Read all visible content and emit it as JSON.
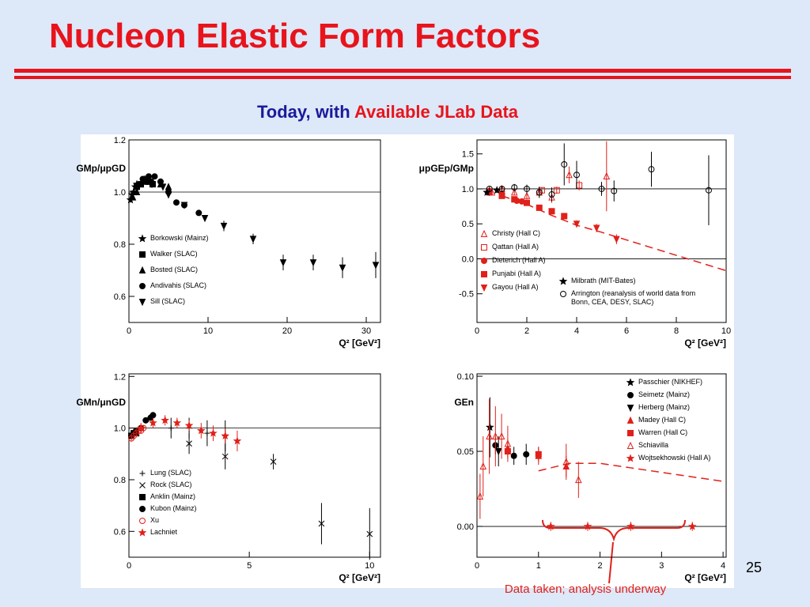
{
  "slide": {
    "title": "Nucleon Elastic Form Factors",
    "subtitle_lead": "Today, with ",
    "subtitle_emph": "Available JLab Data",
    "page_number": "25",
    "annotation": "Data taken; analysis underway"
  },
  "chart_data": [
    {
      "type": "scatter",
      "y_label": "GMp/μpGD",
      "x_label": "Q² [GeV²]",
      "xlim": [
        0,
        31.8
      ],
      "ylim": [
        0.5,
        1.2
      ],
      "xticks": [
        0,
        10,
        20,
        30
      ],
      "yticks": [
        0.6,
        0.8,
        {
          "value": 1,
          "label": "1.0"
        },
        1.2
      ],
      "hlines": [
        1
      ],
      "series": [
        {
          "name": "Borkowski (Mainz)",
          "marker": "star",
          "filled": true,
          "color": "#000000",
          "x": [
            0.2,
            0.4,
            0.6,
            0.8,
            1.0
          ],
          "values": [
            0.97,
            0.99,
            1.0,
            1.02,
            1.03
          ],
          "errors": [
            0.01,
            0.01,
            0.01,
            0.01,
            0.01
          ]
        },
        {
          "name": "Walker (SLAC)",
          "marker": "square",
          "filled": true,
          "color": "#000000",
          "x": [
            1.0,
            1.5,
            2.0,
            2.5,
            3.0
          ],
          "values": [
            1.02,
            1.03,
            1.04,
            1.04,
            1.03
          ],
          "errors": [
            0.01,
            0.01,
            0.01,
            0.01,
            0.01
          ]
        },
        {
          "name": "Bosted (SLAC)",
          "marker": "triangle",
          "filled": true,
          "color": "#000000",
          "x": [
            0.5,
            1.0,
            1.5,
            2.0,
            2.5,
            3.0,
            4.0,
            5.0
          ],
          "values": [
            0.98,
            1.0,
            1.03,
            1.05,
            1.04,
            1.04,
            1.03,
            1.02
          ],
          "errors": [
            0.01,
            0.01,
            0.01,
            0.01,
            0.01,
            0.01,
            0.01,
            0.01
          ]
        },
        {
          "name": "Andivahis (SLAC)",
          "marker": "circle",
          "filled": true,
          "color": "#000000",
          "x": [
            1.75,
            2.5,
            3.25,
            4.0,
            5.0,
            6.0,
            7.0,
            8.83
          ],
          "values": [
            1.05,
            1.06,
            1.06,
            1.04,
            1.0,
            0.96,
            0.95,
            0.92
          ],
          "errors": [
            0.01,
            0.01,
            0.01,
            0.01,
            0.01,
            0.01,
            0.01,
            0.01
          ]
        },
        {
          "name": "Sill (SLAC)",
          "marker": "triangle-down",
          "filled": true,
          "color": "#000000",
          "x": [
            2.9,
            4.3,
            5.0,
            7.0,
            9.6,
            12.0,
            15.7,
            19.5,
            23.3,
            27.0,
            31.2
          ],
          "values": [
            1.03,
            1.02,
            0.99,
            0.95,
            0.9,
            0.87,
            0.82,
            0.73,
            0.73,
            0.71,
            0.72
          ],
          "errors": [
            0.01,
            0.01,
            0.01,
            0.01,
            0.01,
            0.02,
            0.02,
            0.03,
            0.03,
            0.04,
            0.05
          ]
        }
      ]
    },
    {
      "type": "scatter",
      "y_label": "μpGEp/GMp",
      "x_label": "Q² [GeV²]",
      "xlim": [
        0,
        10
      ],
      "ylim": [
        -0.91,
        1.7
      ],
      "xticks": [
        0,
        2,
        4,
        6,
        8,
        10
      ],
      "yticks": [
        -0.5,
        {
          "value": 0,
          "label": "0.0"
        },
        0.5,
        {
          "value": 1,
          "label": "1.0"
        },
        1.5
      ],
      "hlines": [
        0,
        1
      ],
      "series": [
        {
          "name": "Christy (Hall C)",
          "marker": "triangle",
          "filled": false,
          "color": "#e0201a",
          "x": [
            0.6,
            1.0,
            1.5,
            2.0,
            2.5,
            3.0,
            3.7,
            5.2
          ],
          "values": [
            0.95,
            1.0,
            0.95,
            0.9,
            0.95,
            0.88,
            1.2,
            1.18
          ],
          "errors": [
            0.03,
            0.03,
            0.04,
            0.05,
            0.06,
            0.08,
            0.12,
            0.5
          ]
        },
        {
          "name": "Qattan (Hall A)",
          "marker": "square",
          "filled": false,
          "color": "#e0201a",
          "x": [
            2.6,
            3.2,
            4.1
          ],
          "values": [
            0.98,
            0.98,
            1.05
          ],
          "errors": [
            0.04,
            0.05,
            0.07
          ]
        },
        {
          "name": "Dieterich (Hall A)",
          "marker": "circle",
          "filled": true,
          "color": "#e0201a",
          "x": [
            0.5,
            1.0,
            1.6,
            1.8
          ],
          "values": [
            0.97,
            0.93,
            0.83,
            0.82
          ],
          "errors": [
            0.02,
            0.02,
            0.03,
            0.03
          ]
        },
        {
          "name": "Punjabi (Hall A)",
          "marker": "square",
          "filled": true,
          "color": "#e0201a",
          "x": [
            0.5,
            1.0,
            1.5,
            2.0,
            2.5,
            3.0,
            3.5
          ],
          "values": [
            0.95,
            0.9,
            0.85,
            0.8,
            0.73,
            0.68,
            0.61
          ],
          "errors": [
            0.02,
            0.02,
            0.02,
            0.02,
            0.03,
            0.03,
            0.04
          ]
        },
        {
          "name": "Gayou (Hall A)",
          "marker": "triangle-down",
          "filled": true,
          "color": "#e0201a",
          "x": [
            4.0,
            4.8,
            5.6
          ],
          "values": [
            0.5,
            0.44,
            0.28
          ],
          "errors": [
            0.05,
            0.06,
            0.07
          ]
        },
        {
          "name": "Milbrath (MIT-Bates)",
          "marker": "star",
          "filled": true,
          "color": "#000000",
          "x": [
            0.4,
            0.8
          ],
          "values": [
            0.95,
            0.98
          ],
          "errors": [
            0.04,
            0.04
          ]
        },
        {
          "name": "Arrington (reanalysis of world data from Bonn, CEA, DESY, SLAC)",
          "marker": "circle",
          "filled": false,
          "color": "#000000",
          "x": [
            0.5,
            1.0,
            1.5,
            2.0,
            2.5,
            3.0,
            3.5,
            4.0,
            5.0,
            5.5,
            7.0,
            9.3
          ],
          "values": [
            1.0,
            1.0,
            1.02,
            1.0,
            0.95,
            0.92,
            1.35,
            1.2,
            1.0,
            0.97,
            1.28,
            0.98
          ],
          "errors": [
            0.03,
            0.04,
            0.05,
            0.06,
            0.08,
            0.1,
            0.3,
            0.2,
            0.1,
            0.15,
            0.25,
            0.5
          ]
        },
        {
          "style": "dashed",
          "color": "#e0201a",
          "x": [
            1,
            2,
            3,
            4,
            5,
            6,
            7,
            8,
            9,
            10
          ],
          "values": [
            0.9,
            0.78,
            0.62,
            0.48,
            0.38,
            0.27,
            0.16,
            0.05,
            -0.06,
            -0.17
          ]
        }
      ]
    },
    {
      "type": "scatter",
      "y_label": "GMn/μnGD",
      "x_label": "Q² [GeV²]",
      "xlim": [
        0,
        10.45
      ],
      "ylim": [
        0.5,
        1.21
      ],
      "xticks": [
        0,
        5,
        10
      ],
      "yticks": [
        0.6,
        0.8,
        {
          "value": 1,
          "label": "1.0"
        },
        1.2
      ],
      "hlines": [
        1
      ],
      "series": [
        {
          "name": "Lung (SLAC)",
          "marker": "plus",
          "filled": true,
          "color": "#000000",
          "x": [
            1.75,
            2.5,
            3.25,
            4.0
          ],
          "values": [
            1.0,
            1.0,
            0.98,
            0.97
          ],
          "errors": [
            0.04,
            0.04,
            0.05,
            0.06
          ]
        },
        {
          "name": "Rock (SLAC)",
          "marker": "cross",
          "filled": true,
          "color": "#000000",
          "x": [
            2.5,
            4.0,
            6.0,
            8.0,
            10.0
          ],
          "values": [
            0.94,
            0.89,
            0.87,
            0.63,
            0.59
          ],
          "errors": [
            0.04,
            0.05,
            0.03,
            0.08,
            0.1
          ]
        },
        {
          "name": "Anklin (Mainz)",
          "marker": "square",
          "filled": true,
          "color": "#000000",
          "x": [
            0.1,
            0.2,
            0.3
          ],
          "values": [
            0.97,
            0.98,
            0.98
          ],
          "errors": [
            0.01,
            0.01,
            0.01
          ]
        },
        {
          "name": "Kubon (Mainz)",
          "marker": "circle",
          "filled": true,
          "color": "#000000",
          "x": [
            0.3,
            0.5,
            0.7,
            0.9,
            1.0
          ],
          "values": [
            0.99,
            1.0,
            1.03,
            1.04,
            1.05
          ],
          "errors": [
            0.01,
            0.01,
            0.01,
            0.01,
            0.01
          ]
        },
        {
          "name": "Xu",
          "marker": "circle",
          "filled": false,
          "color": "#e0201a",
          "x": [
            0.1,
            0.2,
            0.3,
            0.4,
            0.5,
            0.6
          ],
          "values": [
            0.96,
            0.97,
            0.98,
            0.99,
            0.99,
            1.0
          ],
          "errors": [
            0.01,
            0.01,
            0.01,
            0.01,
            0.01,
            0.01
          ]
        },
        {
          "name": "Lachniet",
          "marker": "star",
          "filled": true,
          "color": "#e0201a",
          "x": [
            0.5,
            1.0,
            1.5,
            2.0,
            2.5,
            3.0,
            3.5,
            4.0,
            4.5
          ],
          "values": [
            1.0,
            1.02,
            1.03,
            1.02,
            1.01,
            0.99,
            0.98,
            0.97,
            0.95
          ],
          "errors": [
            0.02,
            0.02,
            0.02,
            0.02,
            0.02,
            0.03,
            0.03,
            0.03,
            0.04
          ]
        }
      ]
    },
    {
      "type": "scatter",
      "y_label": "GEn",
      "x_label": "Q² [GeV²]",
      "xlim": [
        0,
        4.05
      ],
      "ylim": [
        -0.0205,
        0.1016
      ],
      "xticks": [
        0,
        1,
        2,
        3,
        4
      ],
      "yticks": [
        {
          "value": 0,
          "label": "0.00"
        },
        0.05,
        {
          "value": 0.1,
          "label": "0.10"
        }
      ],
      "hlines": [
        0
      ],
      "series": [
        {
          "name": "Passchier (NIKHEF)",
          "marker": "star",
          "filled": true,
          "color": "#000000",
          "x": [
            0.21
          ],
          "values": [
            0.066
          ],
          "errors": [
            0.02
          ]
        },
        {
          "name": "Seimetz (Mainz)",
          "marker": "circle",
          "filled": true,
          "color": "#000000",
          "x": [
            0.3,
            0.6,
            0.8
          ],
          "values": [
            0.054,
            0.047,
            0.048
          ],
          "errors": [
            0.006,
            0.006,
            0.007
          ]
        },
        {
          "name": "Herberg (Mainz)",
          "marker": "triangle-down",
          "filled": true,
          "color": "#000000",
          "x": [
            0.35
          ],
          "values": [
            0.05
          ],
          "errors": [
            0.01
          ]
        },
        {
          "name": "Madey (Hall C)",
          "marker": "triangle",
          "filled": true,
          "color": "#e0201a",
          "x": [
            0.5,
            1.0,
            1.45
          ],
          "values": [
            0.052,
            0.047,
            0.04
          ],
          "errors": [
            0.006,
            0.006,
            0.007
          ]
        },
        {
          "name": "Warren (Hall C)",
          "marker": "square",
          "filled": true,
          "color": "#e0201a",
          "x": [
            0.5,
            1.0
          ],
          "values": [
            0.05,
            0.048
          ],
          "errors": [
            0.005,
            0.005
          ]
        },
        {
          "name": "Schiavilla",
          "marker": "triangle",
          "filled": false,
          "color": "#e0201a",
          "x": [
            0.05,
            0.1,
            0.2,
            0.3,
            0.4,
            0.5,
            1.45,
            1.65
          ],
          "values": [
            0.02,
            0.04,
            0.06,
            0.06,
            0.06,
            0.055,
            0.043,
            0.031
          ],
          "errors": [
            0.015,
            0.02,
            0.025,
            0.02,
            0.015,
            0.012,
            0.012,
            0.012
          ]
        },
        {
          "name": "Wojtsekhowski (Hall A)",
          "marker": "star",
          "filled": true,
          "color": "#e0201a",
          "x": [
            1.2,
            1.8,
            2.5,
            3.5
          ],
          "values": [
            0,
            0,
            0,
            0
          ],
          "errors": [
            0.003,
            0.003,
            0.003,
            0.003
          ]
        },
        {
          "style": "dashed",
          "color": "#e0201a",
          "x": [
            1,
            1.5,
            2,
            2.5,
            3,
            3.5,
            4
          ],
          "values": [
            0.037,
            0.042,
            0.042,
            0.039,
            0.036,
            0.033,
            0.03
          ]
        }
      ]
    }
  ]
}
